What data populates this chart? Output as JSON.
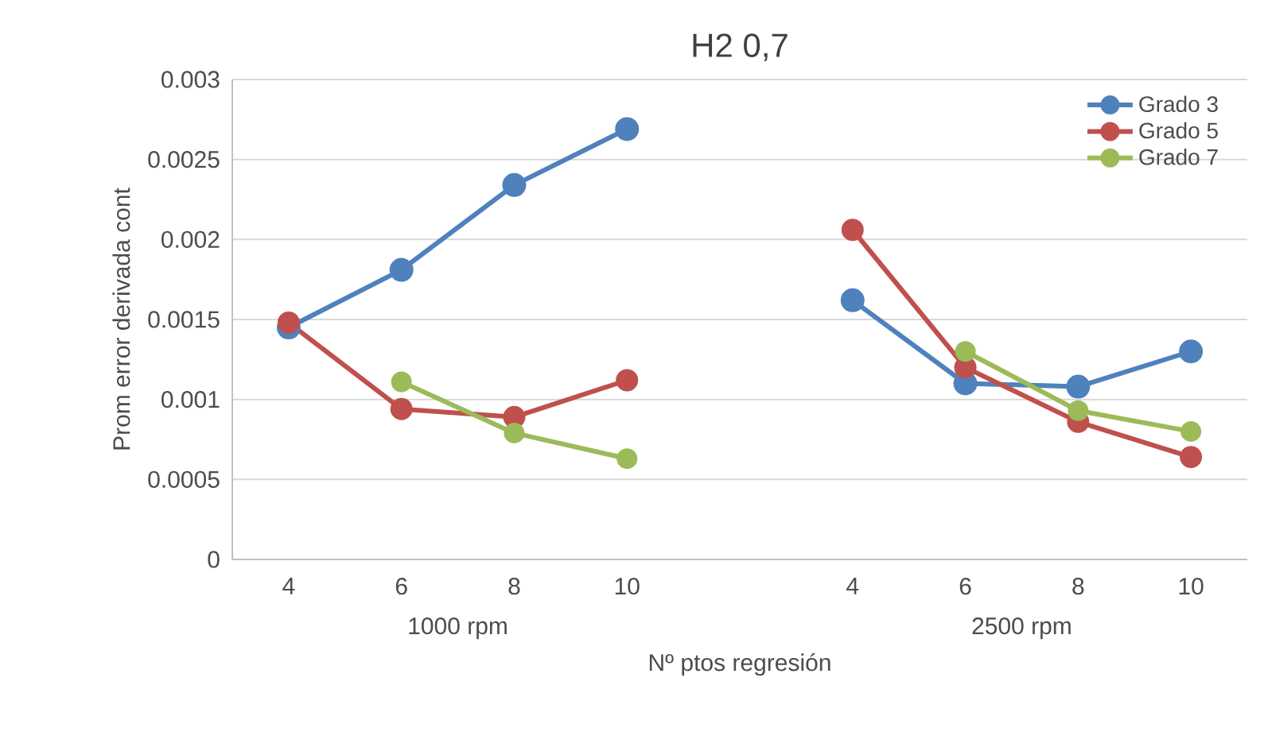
{
  "chart_data": {
    "type": "line",
    "title": "H2 0,7",
    "xlabel": "Nº ptos regresión",
    "ylabel": "Prom error derivada cont",
    "categories": [
      "4",
      "6",
      "8",
      "10",
      null,
      "4",
      "6",
      "8",
      "10"
    ],
    "annotations": [
      "1000 rpm",
      "2500 rpm"
    ],
    "series": [
      {
        "name": "Grado 3",
        "color": "#4f81bd",
        "values": [
          0.00145,
          0.00181,
          0.00234,
          0.00269,
          null,
          0.00162,
          0.0011,
          0.00108,
          0.0013
        ]
      },
      {
        "name": "Grado 5",
        "color": "#c0504d",
        "values": [
          0.00148,
          0.00094,
          0.00089,
          0.00112,
          null,
          0.00206,
          0.0012,
          0.00086,
          0.00064
        ]
      },
      {
        "name": "Grado 7",
        "color": "#9bbb59",
        "values": [
          null,
          0.00111,
          0.00079,
          0.00063,
          null,
          null,
          0.0013,
          0.00093,
          0.0008
        ]
      }
    ],
    "ylim": [
      0,
      0.003
    ],
    "yticks": [
      0,
      0.0005,
      0.001,
      0.0015,
      0.002,
      0.0025,
      0.003
    ],
    "grid": "y",
    "legend": "top right",
    "marker": "circle",
    "line_style": "solid"
  }
}
